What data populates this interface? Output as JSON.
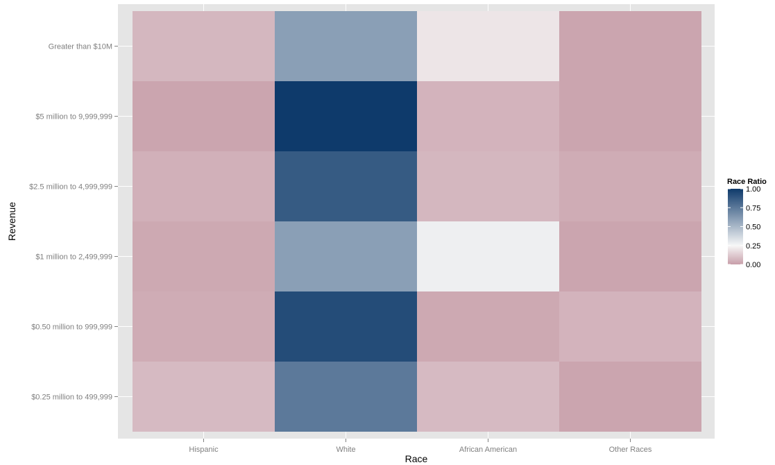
{
  "chart_data": {
    "type": "heatmap",
    "xlabel": "Race",
    "ylabel": "Revenue",
    "x_categories": [
      "Hispanic",
      "White",
      "African American",
      "Other Races"
    ],
    "y_categories": [
      "Greater than $10M",
      "$5 million to 9,999,999",
      "$2.5 million to 4,999,999",
      "$1 million to 2,499,999",
      "$0.50 million to 999,999",
      "$0.25 million to 499,999"
    ],
    "values": [
      [
        0.07,
        0.6,
        0.2,
        0.02
      ],
      [
        0.02,
        1.0,
        0.06,
        0.02
      ],
      [
        0.05,
        0.87,
        0.07,
        0.04
      ],
      [
        0.03,
        0.6,
        0.28,
        0.02
      ],
      [
        0.04,
        0.93,
        0.03,
        0.06
      ],
      [
        0.08,
        0.75,
        0.08,
        0.02
      ]
    ],
    "legend": {
      "title": "Race Ratio",
      "ticks": [
        1.0,
        0.75,
        0.5,
        0.25,
        0.0
      ],
      "tick_labels": [
        "1.00",
        "0.75",
        "0.50",
        "0.25",
        "0.00"
      ],
      "position": "right",
      "low_color": "#c79ea9",
      "mid_color": "#f7f7f7",
      "high_color": "#0e3a6b",
      "midpoint": 0.25
    },
    "panel_background": "#e5e5e5",
    "grid": true
  }
}
